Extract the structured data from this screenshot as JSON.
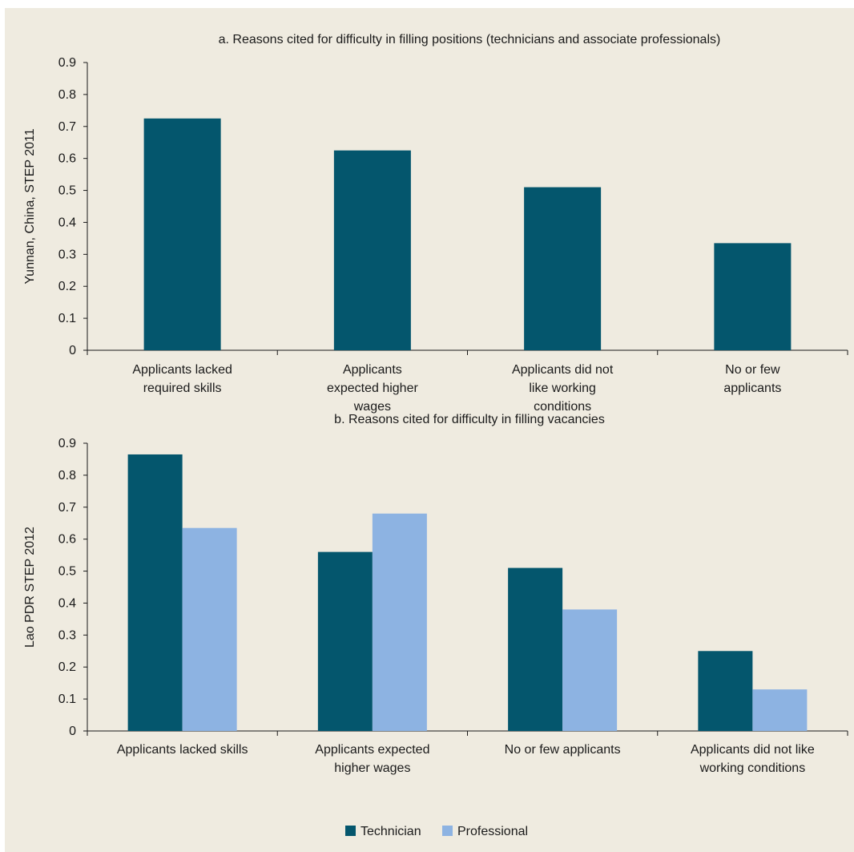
{
  "colors": {
    "background": "#efebe0",
    "technician": "#04566d",
    "professional": "#8db3e2",
    "axis": "#1a1a1a"
  },
  "chart_data": [
    {
      "type": "bar",
      "title": "a. Reasons cited for difficulty in filling positions (technicians and associate professionals)",
      "ylabel": "Yunnan, China, STEP 2011",
      "xlabel": "",
      "ylim": [
        0,
        0.9
      ],
      "yticks": [
        "0",
        "0.1",
        "0.2",
        "0.3",
        "0.4",
        "0.5",
        "0.6",
        "0.7",
        "0.8",
        "0.9"
      ],
      "grid": false,
      "categories": [
        [
          "Applicants lacked",
          "required skills"
        ],
        [
          "Applicants",
          "expected higher",
          "wages"
        ],
        [
          "Applicants did not",
          "like working",
          "conditions"
        ],
        [
          "No or few",
          "applicants"
        ]
      ],
      "series": [
        {
          "key": "technician",
          "values": [
            0.725,
            0.625,
            0.51,
            0.335
          ]
        }
      ]
    },
    {
      "type": "bar",
      "title": "b. Reasons cited for difficulty in filling vacancies",
      "ylabel": "Lao PDR STEP 2012",
      "xlabel": "",
      "ylim": [
        0,
        0.9
      ],
      "yticks": [
        "0",
        "0.1",
        "0.2",
        "0.3",
        "0.4",
        "0.5",
        "0.6",
        "0.7",
        "0.8",
        "0.9"
      ],
      "grid": false,
      "legend_position": "bottom-center",
      "categories": [
        [
          "Applicants lacked skills"
        ],
        [
          "Applicants expected",
          "higher wages"
        ],
        [
          "No or few applicants"
        ],
        [
          "Applicants did not like",
          "working conditions"
        ]
      ],
      "series": [
        {
          "name": "Technician",
          "key": "technician",
          "values": [
            0.865,
            0.56,
            0.51,
            0.25
          ]
        },
        {
          "name": "Professional",
          "key": "professional",
          "values": [
            0.635,
            0.68,
            0.38,
            0.13
          ]
        }
      ]
    }
  ]
}
